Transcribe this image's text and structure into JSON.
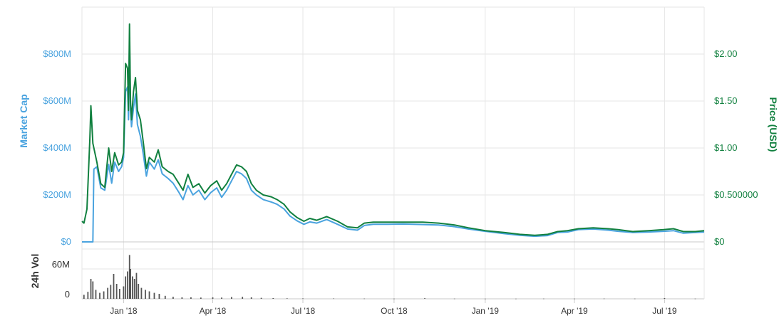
{
  "chart_data": {
    "type": "line",
    "title": "",
    "x_range": [
      "2017-11-20",
      "2019-08-10"
    ],
    "x_ticks": [
      {
        "date": "2018-01-01",
        "label": "Jan '18"
      },
      {
        "date": "2018-04-01",
        "label": "Apr '18"
      },
      {
        "date": "2018-07-01",
        "label": "Jul '18"
      },
      {
        "date": "2018-10-01",
        "label": "Oct '18"
      },
      {
        "date": "2019-01-01",
        "label": "Jan '19"
      },
      {
        "date": "2019-04-01",
        "label": "Apr '19"
      },
      {
        "date": "2019-07-01",
        "label": "Jul '19"
      }
    ],
    "y_left": {
      "label": "Market Cap",
      "range": [
        0,
        1000000000
      ],
      "ticks": [
        {
          "value": 0,
          "label": "$0"
        },
        {
          "value": 200000000,
          "label": "$200M"
        },
        {
          "value": 400000000,
          "label": "$400M"
        },
        {
          "value": 600000000,
          "label": "$600M"
        },
        {
          "value": 800000000,
          "label": "$800M"
        }
      ],
      "color": "#4aa3df"
    },
    "y_right": {
      "label": "Price (USD)",
      "range": [
        0,
        2.5
      ],
      "ticks": [
        {
          "value": 0,
          "label": "$0"
        },
        {
          "value": 0.5,
          "label": "$0.500000"
        },
        {
          "value": 1.0,
          "label": "$1.00"
        },
        {
          "value": 1.5,
          "label": "$1.50"
        },
        {
          "value": 2.0,
          "label": "$2.00"
        }
      ],
      "color": "#11803f"
    },
    "y_volume": {
      "label": "24h Vol",
      "range": [
        0,
        100000000
      ],
      "ticks": [
        {
          "value": 0,
          "label": "0"
        },
        {
          "value": 60000000,
          "label": "60M"
        }
      ],
      "color": "#555555"
    },
    "grid": true,
    "series": [
      {
        "axis": "left",
        "color": "#4aa3df",
        "points": [
          [
            "2017-11-20",
            0
          ],
          [
            "2017-12-01",
            0
          ],
          [
            "2017-12-02",
            310000000
          ],
          [
            "2017-12-05",
            320000000
          ],
          [
            "2017-12-09",
            230000000
          ],
          [
            "2017-12-13",
            220000000
          ],
          [
            "2017-12-17",
            330000000
          ],
          [
            "2017-12-20",
            250000000
          ],
          [
            "2017-12-23",
            340000000
          ],
          [
            "2017-12-27",
            300000000
          ],
          [
            "2017-12-30",
            320000000
          ],
          [
            "2018-01-01",
            360000000
          ],
          [
            "2018-01-03",
            640000000
          ],
          [
            "2018-01-05",
            660000000
          ],
          [
            "2018-01-06",
            520000000
          ],
          [
            "2018-01-07",
            870000000
          ],
          [
            "2018-01-08",
            560000000
          ],
          [
            "2018-01-09",
            490000000
          ],
          [
            "2018-01-11",
            570000000
          ],
          [
            "2018-01-13",
            630000000
          ],
          [
            "2018-01-15",
            500000000
          ],
          [
            "2018-01-18",
            450000000
          ],
          [
            "2018-01-21",
            370000000
          ],
          [
            "2018-01-24",
            280000000
          ],
          [
            "2018-01-27",
            340000000
          ],
          [
            "2018-02-01",
            310000000
          ],
          [
            "2018-02-05",
            350000000
          ],
          [
            "2018-02-09",
            290000000
          ],
          [
            "2018-02-15",
            270000000
          ],
          [
            "2018-02-20",
            250000000
          ],
          [
            "2018-02-26",
            210000000
          ],
          [
            "2018-03-02",
            180000000
          ],
          [
            "2018-03-07",
            240000000
          ],
          [
            "2018-03-12",
            200000000
          ],
          [
            "2018-03-18",
            220000000
          ],
          [
            "2018-03-24",
            180000000
          ],
          [
            "2018-03-30",
            210000000
          ],
          [
            "2018-04-05",
            230000000
          ],
          [
            "2018-04-10",
            190000000
          ],
          [
            "2018-04-15",
            220000000
          ],
          [
            "2018-04-20",
            260000000
          ],
          [
            "2018-04-25",
            300000000
          ],
          [
            "2018-04-30",
            290000000
          ],
          [
            "2018-05-05",
            270000000
          ],
          [
            "2018-05-10",
            220000000
          ],
          [
            "2018-05-15",
            200000000
          ],
          [
            "2018-05-22",
            180000000
          ],
          [
            "2018-05-30",
            170000000
          ],
          [
            "2018-06-05",
            160000000
          ],
          [
            "2018-06-12",
            140000000
          ],
          [
            "2018-06-18",
            110000000
          ],
          [
            "2018-06-25",
            90000000
          ],
          [
            "2018-07-02",
            75000000
          ],
          [
            "2018-07-08",
            85000000
          ],
          [
            "2018-07-15",
            80000000
          ],
          [
            "2018-07-25",
            95000000
          ],
          [
            "2018-08-05",
            75000000
          ],
          [
            "2018-08-15",
            55000000
          ],
          [
            "2018-08-25",
            50000000
          ],
          [
            "2018-09-01",
            70000000
          ],
          [
            "2018-09-10",
            75000000
          ],
          [
            "2018-09-25",
            75000000
          ],
          [
            "2018-10-10",
            76000000
          ],
          [
            "2018-10-30",
            74000000
          ],
          [
            "2018-11-15",
            72000000
          ],
          [
            "2018-12-01",
            65000000
          ],
          [
            "2018-12-15",
            55000000
          ],
          [
            "2019-01-01",
            45000000
          ],
          [
            "2019-01-20",
            35000000
          ],
          [
            "2019-02-05",
            28000000
          ],
          [
            "2019-02-20",
            24000000
          ],
          [
            "2019-03-05",
            27000000
          ],
          [
            "2019-03-15",
            40000000
          ],
          [
            "2019-03-25",
            42000000
          ],
          [
            "2019-04-05",
            52000000
          ],
          [
            "2019-04-20",
            55000000
          ],
          [
            "2019-05-05",
            50000000
          ],
          [
            "2019-05-15",
            45000000
          ],
          [
            "2019-05-30",
            40000000
          ],
          [
            "2019-06-15",
            42000000
          ],
          [
            "2019-06-30",
            45000000
          ],
          [
            "2019-07-10",
            48000000
          ],
          [
            "2019-07-20",
            37000000
          ],
          [
            "2019-08-01",
            40000000
          ],
          [
            "2019-08-10",
            42000000
          ]
        ]
      },
      {
        "axis": "right",
        "color": "#11803f",
        "points": [
          [
            "2017-11-20",
            0.22
          ],
          [
            "2017-11-22",
            0.2
          ],
          [
            "2017-11-25",
            0.35
          ],
          [
            "2017-11-28",
            1.1
          ],
          [
            "2017-11-29",
            1.45
          ],
          [
            "2017-12-01",
            1.05
          ],
          [
            "2017-12-05",
            0.85
          ],
          [
            "2017-12-09",
            0.62
          ],
          [
            "2017-12-13",
            0.58
          ],
          [
            "2017-12-17",
            1.0
          ],
          [
            "2017-12-20",
            0.75
          ],
          [
            "2017-12-23",
            0.95
          ],
          [
            "2017-12-27",
            0.82
          ],
          [
            "2017-12-30",
            0.85
          ],
          [
            "2018-01-01",
            0.95
          ],
          [
            "2018-01-03",
            1.9
          ],
          [
            "2018-01-05",
            1.85
          ],
          [
            "2018-01-06",
            1.4
          ],
          [
            "2018-01-07",
            2.32
          ],
          [
            "2018-01-08",
            1.5
          ],
          [
            "2018-01-09",
            1.3
          ],
          [
            "2018-01-11",
            1.6
          ],
          [
            "2018-01-13",
            1.75
          ],
          [
            "2018-01-15",
            1.4
          ],
          [
            "2018-01-18",
            1.3
          ],
          [
            "2018-01-21",
            1.05
          ],
          [
            "2018-01-24",
            0.78
          ],
          [
            "2018-01-27",
            0.9
          ],
          [
            "2018-02-01",
            0.85
          ],
          [
            "2018-02-05",
            0.98
          ],
          [
            "2018-02-09",
            0.8
          ],
          [
            "2018-02-15",
            0.75
          ],
          [
            "2018-02-20",
            0.72
          ],
          [
            "2018-02-26",
            0.62
          ],
          [
            "2018-03-02",
            0.55
          ],
          [
            "2018-03-07",
            0.72
          ],
          [
            "2018-03-12",
            0.58
          ],
          [
            "2018-03-18",
            0.62
          ],
          [
            "2018-03-24",
            0.52
          ],
          [
            "2018-03-30",
            0.6
          ],
          [
            "2018-04-05",
            0.65
          ],
          [
            "2018-04-10",
            0.55
          ],
          [
            "2018-04-15",
            0.62
          ],
          [
            "2018-04-20",
            0.72
          ],
          [
            "2018-04-25",
            0.82
          ],
          [
            "2018-04-30",
            0.8
          ],
          [
            "2018-05-05",
            0.75
          ],
          [
            "2018-05-10",
            0.62
          ],
          [
            "2018-05-15",
            0.55
          ],
          [
            "2018-05-22",
            0.5
          ],
          [
            "2018-05-30",
            0.48
          ],
          [
            "2018-06-05",
            0.45
          ],
          [
            "2018-06-12",
            0.4
          ],
          [
            "2018-06-18",
            0.32
          ],
          [
            "2018-06-25",
            0.26
          ],
          [
            "2018-07-02",
            0.22
          ],
          [
            "2018-07-08",
            0.25
          ],
          [
            "2018-07-15",
            0.23
          ],
          [
            "2018-07-25",
            0.27
          ],
          [
            "2018-08-05",
            0.22
          ],
          [
            "2018-08-15",
            0.16
          ],
          [
            "2018-08-25",
            0.15
          ],
          [
            "2018-09-01",
            0.2
          ],
          [
            "2018-09-10",
            0.21
          ],
          [
            "2018-09-25",
            0.21
          ],
          [
            "2018-10-10",
            0.21
          ],
          [
            "2018-10-30",
            0.21
          ],
          [
            "2018-11-15",
            0.2
          ],
          [
            "2018-12-01",
            0.18
          ],
          [
            "2018-12-15",
            0.15
          ],
          [
            "2019-01-01",
            0.12
          ],
          [
            "2019-01-20",
            0.1
          ],
          [
            "2019-02-05",
            0.08
          ],
          [
            "2019-02-20",
            0.07
          ],
          [
            "2019-03-05",
            0.08
          ],
          [
            "2019-03-15",
            0.11
          ],
          [
            "2019-03-25",
            0.12
          ],
          [
            "2019-04-05",
            0.14
          ],
          [
            "2019-04-20",
            0.15
          ],
          [
            "2019-05-05",
            0.14
          ],
          [
            "2019-05-15",
            0.13
          ],
          [
            "2019-05-30",
            0.11
          ],
          [
            "2019-06-15",
            0.12
          ],
          [
            "2019-06-30",
            0.13
          ],
          [
            "2019-07-10",
            0.14
          ],
          [
            "2019-07-20",
            0.11
          ],
          [
            "2019-08-01",
            0.11
          ],
          [
            "2019-08-10",
            0.12
          ]
        ]
      }
    ],
    "volume": {
      "color": "#555555",
      "points": [
        [
          "2017-11-22",
          8000000
        ],
        [
          "2017-11-26",
          14000000
        ],
        [
          "2017-11-29",
          40000000
        ],
        [
          "2017-12-01",
          35000000
        ],
        [
          "2017-12-04",
          18000000
        ],
        [
          "2017-12-08",
          12000000
        ],
        [
          "2017-12-12",
          15000000
        ],
        [
          "2017-12-16",
          22000000
        ],
        [
          "2017-12-19",
          28000000
        ],
        [
          "2017-12-22",
          50000000
        ],
        [
          "2017-12-25",
          30000000
        ],
        [
          "2017-12-28",
          20000000
        ],
        [
          "2018-01-01",
          25000000
        ],
        [
          "2018-01-03",
          45000000
        ],
        [
          "2018-01-05",
          55000000
        ],
        [
          "2018-01-07",
          88000000
        ],
        [
          "2018-01-08",
          60000000
        ],
        [
          "2018-01-10",
          45000000
        ],
        [
          "2018-01-12",
          40000000
        ],
        [
          "2018-01-14",
          52000000
        ],
        [
          "2018-01-16",
          30000000
        ],
        [
          "2018-01-19",
          22000000
        ],
        [
          "2018-01-23",
          18000000
        ],
        [
          "2018-01-27",
          15000000
        ],
        [
          "2018-02-01",
          12000000
        ],
        [
          "2018-02-06",
          10000000
        ],
        [
          "2018-02-12",
          6000000
        ],
        [
          "2018-02-20",
          4000000
        ],
        [
          "2018-03-01",
          3000000
        ],
        [
          "2018-03-10",
          3000000
        ],
        [
          "2018-03-20",
          2500000
        ],
        [
          "2018-04-01",
          3000000
        ],
        [
          "2018-04-10",
          2500000
        ],
        [
          "2018-04-20",
          3500000
        ],
        [
          "2018-05-01",
          4000000
        ],
        [
          "2018-05-10",
          3000000
        ],
        [
          "2018-05-20",
          2000000
        ],
        [
          "2018-06-01",
          1500000
        ],
        [
          "2018-06-15",
          1000000
        ],
        [
          "2018-07-01",
          800000
        ],
        [
          "2018-08-01",
          700000
        ],
        [
          "2018-09-01",
          500000
        ],
        [
          "2018-10-01",
          400000
        ],
        [
          "2018-11-01",
          1200000
        ],
        [
          "2018-12-01",
          400000
        ],
        [
          "2019-01-01",
          300000
        ],
        [
          "2019-02-01",
          300000
        ],
        [
          "2019-03-01",
          400000
        ],
        [
          "2019-04-01",
          400000
        ],
        [
          "2019-05-01",
          500000
        ],
        [
          "2019-06-01",
          400000
        ],
        [
          "2019-07-01",
          1500000
        ],
        [
          "2019-08-01",
          400000
        ]
      ]
    }
  }
}
